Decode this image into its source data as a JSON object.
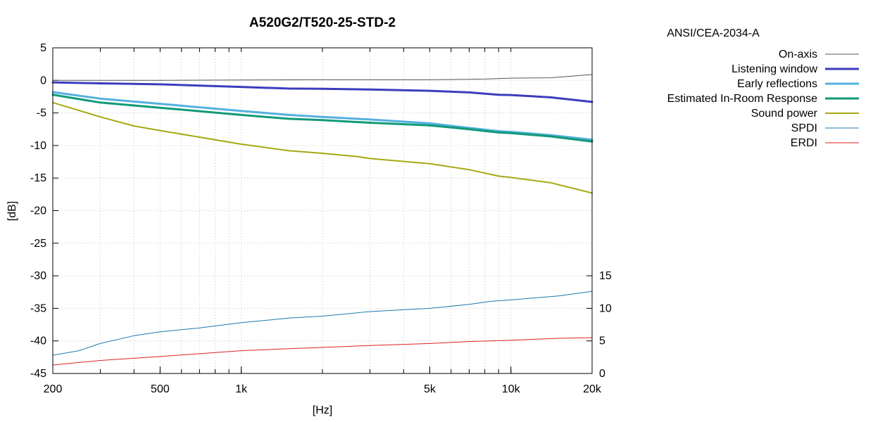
{
  "chart_data": {
    "type": "line",
    "title": "A520G2/T520-25-STD-2",
    "xlabel": "[Hz]",
    "ylabel": "[dB]",
    "x_scale": "log",
    "xlim": [
      200,
      20000
    ],
    "ylim": [
      -45,
      5
    ],
    "y2lim": [
      0,
      15
    ],
    "grid": true,
    "legend_title": "ANSI/CEA-2034-A",
    "legend_position": "outside-right",
    "x_ticks": [
      {
        "value": 200,
        "label": "200"
      },
      {
        "value": 500,
        "label": "500"
      },
      {
        "value": 1000,
        "label": "1k"
      },
      {
        "value": 5000,
        "label": "5k"
      },
      {
        "value": 10000,
        "label": "10k"
      },
      {
        "value": 20000,
        "label": "20k"
      }
    ],
    "y_ticks": [
      {
        "value": 5,
        "label": "5"
      },
      {
        "value": 0,
        "label": "0"
      },
      {
        "value": -5,
        "label": "-5"
      },
      {
        "value": -10,
        "label": "-10"
      },
      {
        "value": -15,
        "label": "-15"
      },
      {
        "value": -20,
        "label": "-20"
      },
      {
        "value": -25,
        "label": "-25"
      },
      {
        "value": -30,
        "label": "-30"
      },
      {
        "value": -35,
        "label": "-35"
      },
      {
        "value": -40,
        "label": "-40"
      },
      {
        "value": -45,
        "label": "-45"
      }
    ],
    "y2_ticks": [
      {
        "value": 15,
        "label": "15"
      },
      {
        "value": 10,
        "label": "10"
      },
      {
        "value": 5,
        "label": "5"
      },
      {
        "value": 0,
        "label": "0"
      }
    ],
    "series": [
      {
        "name": "On-axis",
        "color": "#555555",
        "width": 1,
        "axis": "y",
        "points": [
          [
            200,
            0
          ],
          [
            500,
            0
          ],
          [
            1000,
            0.05
          ],
          [
            2000,
            0.1
          ],
          [
            3000,
            0.1
          ],
          [
            5000,
            0.1
          ],
          [
            8000,
            0.2
          ],
          [
            10000,
            0.35
          ],
          [
            14000,
            0.4
          ],
          [
            20000,
            0.9
          ]
        ]
      },
      {
        "name": "Listening window",
        "color": "#3c3cbe",
        "width": 3,
        "axis": "y",
        "points": [
          [
            200,
            -0.3
          ],
          [
            300,
            -0.45
          ],
          [
            500,
            -0.6
          ],
          [
            1000,
            -1.0
          ],
          [
            1500,
            -1.25
          ],
          [
            2000,
            -1.3
          ],
          [
            3000,
            -1.4
          ],
          [
            5000,
            -1.6
          ],
          [
            7000,
            -1.85
          ],
          [
            9000,
            -2.2
          ],
          [
            10000,
            -2.25
          ],
          [
            14000,
            -2.6
          ],
          [
            20000,
            -3.3
          ]
        ]
      },
      {
        "name": "Early reflections",
        "color": "#55b0e0",
        "width": 3,
        "axis": "y",
        "points": [
          [
            200,
            -1.8
          ],
          [
            300,
            -2.8
          ],
          [
            500,
            -3.6
          ],
          [
            1000,
            -4.7
          ],
          [
            1500,
            -5.3
          ],
          [
            2000,
            -5.6
          ],
          [
            3000,
            -6.0
          ],
          [
            5000,
            -6.6
          ],
          [
            7000,
            -7.3
          ],
          [
            9000,
            -7.8
          ],
          [
            10000,
            -7.9
          ],
          [
            14000,
            -8.4
          ],
          [
            20000,
            -9.1
          ]
        ]
      },
      {
        "name": "Estimated In-Room Response",
        "color": "#109a78",
        "width": 3,
        "axis": "y",
        "points": [
          [
            200,
            -2.2
          ],
          [
            300,
            -3.4
          ],
          [
            500,
            -4.2
          ],
          [
            1000,
            -5.3
          ],
          [
            1500,
            -5.9
          ],
          [
            2000,
            -6.1
          ],
          [
            3000,
            -6.5
          ],
          [
            5000,
            -6.9
          ],
          [
            7000,
            -7.5
          ],
          [
            9000,
            -8.0
          ],
          [
            10000,
            -8.1
          ],
          [
            14000,
            -8.6
          ],
          [
            20000,
            -9.4
          ]
        ]
      },
      {
        "name": "Sound power",
        "color": "#a8a814",
        "width": 2,
        "axis": "y",
        "points": [
          [
            200,
            -3.4
          ],
          [
            300,
            -5.6
          ],
          [
            400,
            -7.0
          ],
          [
            500,
            -7.7
          ],
          [
            1000,
            -9.8
          ],
          [
            1500,
            -10.8
          ],
          [
            2000,
            -11.2
          ],
          [
            2700,
            -11.7
          ],
          [
            3000,
            -12.0
          ],
          [
            5000,
            -12.8
          ],
          [
            7000,
            -13.7
          ],
          [
            9000,
            -14.7
          ],
          [
            10000,
            -14.9
          ],
          [
            14000,
            -15.7
          ],
          [
            20000,
            -17.3
          ]
        ]
      },
      {
        "name": "SPDI",
        "color": "#1e78b0",
        "width": 1,
        "axis": "y2",
        "points": [
          [
            200,
            2.8
          ],
          [
            250,
            3.5
          ],
          [
            300,
            4.6
          ],
          [
            400,
            5.8
          ],
          [
            500,
            6.4
          ],
          [
            700,
            7.0
          ],
          [
            1000,
            7.8
          ],
          [
            1500,
            8.5
          ],
          [
            2000,
            8.8
          ],
          [
            3000,
            9.5
          ],
          [
            5000,
            10.0
          ],
          [
            7000,
            10.6
          ],
          [
            8500,
            11.1
          ],
          [
            10000,
            11.3
          ],
          [
            15000,
            11.9
          ],
          [
            20000,
            12.6
          ]
        ]
      },
      {
        "name": "ERDI",
        "color": "#dd2222",
        "width": 1,
        "axis": "y2",
        "points": [
          [
            200,
            1.3
          ],
          [
            300,
            2.0
          ],
          [
            500,
            2.6
          ],
          [
            1000,
            3.5
          ],
          [
            1500,
            3.8
          ],
          [
            2000,
            4.0
          ],
          [
            3000,
            4.3
          ],
          [
            5000,
            4.6
          ],
          [
            7000,
            4.9
          ],
          [
            10000,
            5.1
          ],
          [
            15000,
            5.4
          ],
          [
            20000,
            5.5
          ]
        ]
      }
    ]
  }
}
